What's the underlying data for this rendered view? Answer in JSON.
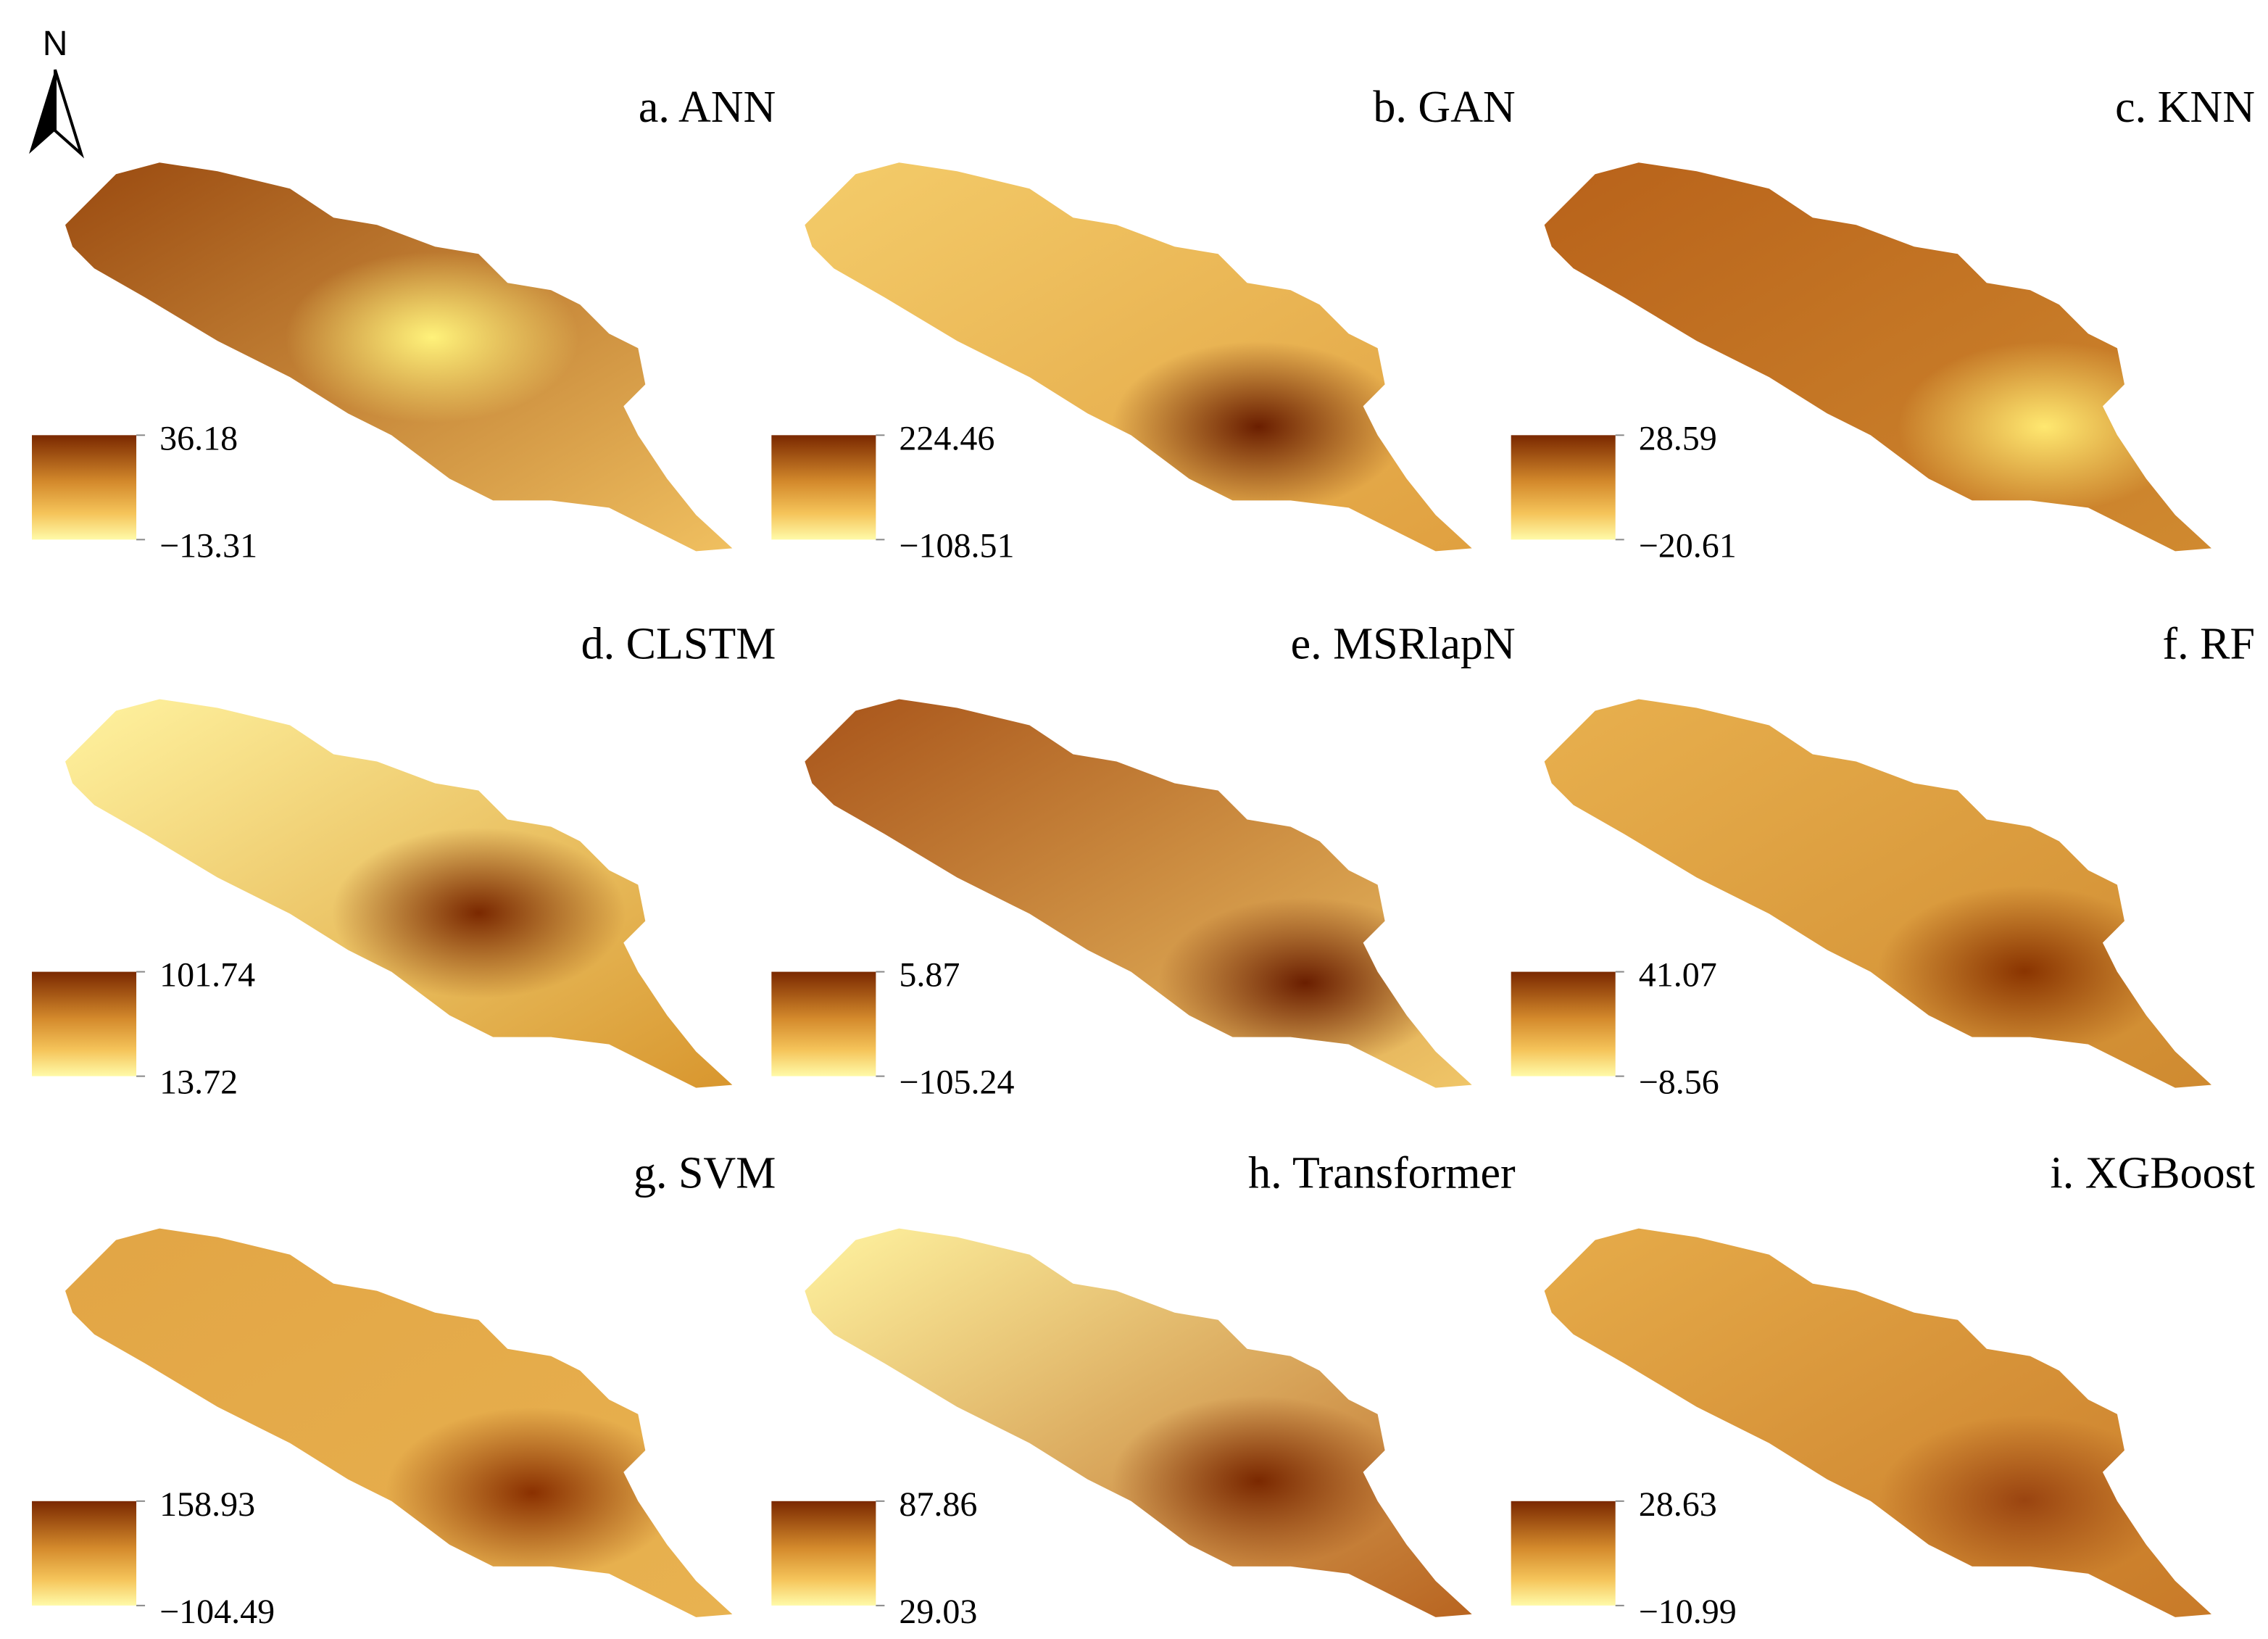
{
  "north": "N",
  "panels": [
    {
      "title": "a. ANN",
      "legend_max": "36.18",
      "legend_min": "−13.31"
    },
    {
      "title": "b. GAN",
      "legend_max": "224.46",
      "legend_min": "−108.51"
    },
    {
      "title": "c. KNN",
      "legend_max": "28.59",
      "legend_min": "−20.61"
    },
    {
      "title": "d. CLSTM",
      "legend_max": "101.74",
      "legend_min": "13.72"
    },
    {
      "title": "e. MSRlapN",
      "legend_max": "5.87",
      "legend_min": "−105.24"
    },
    {
      "title": "f. RF",
      "legend_max": "41.07",
      "legend_min": "−8.56"
    },
    {
      "title": "g. SVM",
      "legend_max": "158.93",
      "legend_min": "−104.49"
    },
    {
      "title": "h. Transformer",
      "legend_max": "87.86",
      "legend_min": "29.03"
    },
    {
      "title": "i. XGBoost",
      "legend_max": "28.63",
      "legend_min": "−10.99"
    }
  ]
}
